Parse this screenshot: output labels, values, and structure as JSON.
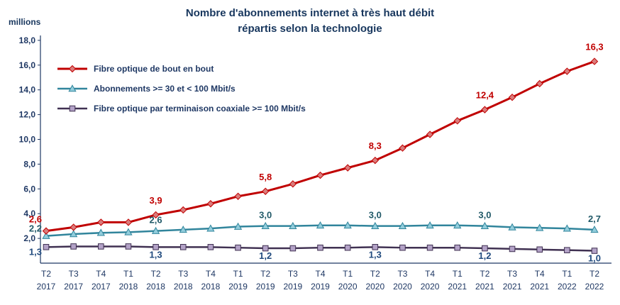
{
  "title": {
    "line1": "Nombre d'abonnements internet à très haut débit",
    "line2": "répartis selon la technologie"
  },
  "y_axis_unit": "millions",
  "chart_data": {
    "type": "line",
    "title": "Nombre d'abonnements internet à très haut débit répartis selon la technologie",
    "xlabel": "",
    "ylabel": "millions",
    "ylim": [
      0,
      18
    ],
    "grid": false,
    "legend_position": "top-left",
    "y_ticks": [
      {
        "value": 18,
        "label": "18,0"
      },
      {
        "value": 16,
        "label": "16,0"
      },
      {
        "value": 14,
        "label": "14,0"
      },
      {
        "value": 12,
        "label": "12,0"
      },
      {
        "value": 10,
        "label": "10,0"
      },
      {
        "value": 8,
        "label": "8,0"
      },
      {
        "value": 6,
        "label": "6,0"
      },
      {
        "value": 4,
        "label": "4,0"
      },
      {
        "value": 2,
        "label": "2,0"
      }
    ],
    "categories": [
      {
        "line1": "T2",
        "line2": "2017"
      },
      {
        "line1": "T3",
        "line2": "2017"
      },
      {
        "line1": "T4",
        "line2": "2017"
      },
      {
        "line1": "T1",
        "line2": "2018"
      },
      {
        "line1": "T2",
        "line2": "2018"
      },
      {
        "line1": "T3",
        "line2": "2018"
      },
      {
        "line1": "T4",
        "line2": "2018"
      },
      {
        "line1": "T1",
        "line2": "2019"
      },
      {
        "line1": "T2",
        "line2": "2019"
      },
      {
        "line1": "T3",
        "line2": "2019"
      },
      {
        "line1": "T4",
        "line2": "2019"
      },
      {
        "line1": "T1",
        "line2": "2020"
      },
      {
        "line1": "T2",
        "line2": "2020"
      },
      {
        "line1": "T3",
        "line2": "2020"
      },
      {
        "line1": "T4",
        "line2": "2020"
      },
      {
        "line1": "T1",
        "line2": "2021"
      },
      {
        "line1": "T2",
        "line2": "2021"
      },
      {
        "line1": "T3",
        "line2": "2021"
      },
      {
        "line1": "T4",
        "line2": "2021"
      },
      {
        "line1": "T1",
        "line2": "2022"
      },
      {
        "line1": "T2",
        "line2": "2022"
      }
    ],
    "series": [
      {
        "name": "Fibre optique de bout en bout",
        "color": "#C00000",
        "marker": "diamond",
        "marker_fill": "#DA7C7C",
        "line_width": 3,
        "label_color": "#C00000",
        "label_position": "above",
        "values": [
          2.6,
          2.9,
          3.3,
          3.3,
          3.9,
          4.3,
          4.8,
          5.4,
          5.8,
          6.4,
          7.1,
          7.7,
          8.3,
          9.3,
          10.4,
          11.5,
          12.4,
          13.4,
          14.5,
          15.5,
          16.3
        ],
        "labels": [
          {
            "index": 0,
            "text": "2,6"
          },
          {
            "index": 4,
            "text": "3,9"
          },
          {
            "index": 8,
            "text": "5,8"
          },
          {
            "index": 12,
            "text": "8,3"
          },
          {
            "index": 16,
            "text": "12,4"
          },
          {
            "index": 20,
            "text": "16,3"
          }
        ]
      },
      {
        "name": "Abonnements >= 30 et < 100 Mbit/s",
        "color": "#31859C",
        "marker": "triangle",
        "marker_fill": "#92CDDC",
        "line_width": 2.5,
        "label_color": "#215968",
        "label_position": "above",
        "values": [
          2.2,
          2.35,
          2.45,
          2.5,
          2.6,
          2.7,
          2.8,
          2.95,
          3.0,
          3.0,
          3.05,
          3.05,
          3.0,
          3.0,
          3.05,
          3.05,
          3.0,
          2.9,
          2.85,
          2.8,
          2.7
        ],
        "labels": [
          {
            "index": 0,
            "text": "2,2"
          },
          {
            "index": 4,
            "text": "2,6"
          },
          {
            "index": 8,
            "text": "3,0"
          },
          {
            "index": 12,
            "text": "3,0"
          },
          {
            "index": 16,
            "text": "3,0"
          },
          {
            "index": 20,
            "text": "2,7"
          }
        ]
      },
      {
        "name": "Fibre optique par terminaison coaxiale >= 100 Mbit/s",
        "color": "#403152",
        "marker": "square",
        "marker_fill": "#B3A2C7",
        "line_width": 2.5,
        "label_color": "#1F497D",
        "label_position": "below",
        "values": [
          1.3,
          1.35,
          1.35,
          1.35,
          1.3,
          1.3,
          1.3,
          1.25,
          1.2,
          1.2,
          1.25,
          1.25,
          1.3,
          1.25,
          1.25,
          1.25,
          1.2,
          1.15,
          1.1,
          1.05,
          1.0
        ],
        "labels": [
          {
            "index": 0,
            "text": "1,3"
          },
          {
            "index": 4,
            "text": "1,3"
          },
          {
            "index": 8,
            "text": "1,2"
          },
          {
            "index": 12,
            "text": "1,3"
          },
          {
            "index": 16,
            "text": "1,2"
          },
          {
            "index": 20,
            "text": "1,0"
          }
        ]
      }
    ]
  }
}
